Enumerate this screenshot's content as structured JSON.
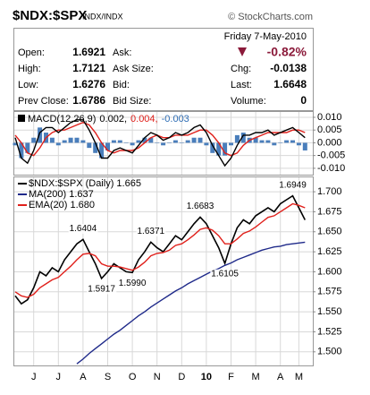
{
  "header": {
    "title": "$NDX:$SPX",
    "exchange": "INDX/INDX",
    "copyright": "© StockCharts.com"
  },
  "quote": {
    "date": "Friday  7-May-2010",
    "change": "-0.82%",
    "left": [
      [
        "Open:",
        "1.6921"
      ],
      [
        "High:",
        "1.7121"
      ],
      [
        "Low:",
        "1.6276"
      ],
      [
        "Prev Close:",
        "1.6786"
      ]
    ],
    "middle": [
      "Ask:",
      "Ask Size:",
      "Bid:",
      "Bid Size:"
    ],
    "right": [
      [
        "Chg:",
        "-0.0138"
      ],
      [
        "Last:",
        "1.6648"
      ],
      [
        "Volume:",
        "0"
      ]
    ]
  },
  "chart_data": [
    {
      "type": "line",
      "legend": [
        {
          "text": "MACD(12,26,9)",
          "color": "#000000"
        },
        {
          "text": "0.002,",
          "color": "#000000"
        },
        {
          "text": "0.004,",
          "color": "#e0201b"
        },
        {
          "text": "-0.003",
          "color": "#2f6eb5"
        }
      ],
      "ylim": [
        -0.0125,
        0.0121
      ],
      "yticks": [
        {
          "value": 0.01,
          "label": "0.010"
        },
        {
          "value": 0.005,
          "label": "0.005"
        },
        {
          "value": 0,
          "label": "0.000"
        },
        {
          "value": -0.005,
          "label": "-0.005"
        },
        {
          "value": -0.01,
          "label": "-0.010"
        }
      ],
      "grid": true,
      "series": [
        {
          "type": "bar",
          "color": "#4a7ebb",
          "values": [
            -0.001,
            -0.006,
            -0.004,
            0.002,
            0.006,
            0.004,
            0.002,
            -0.001,
            0.001,
            0.002,
            0.002,
            0.001,
            -0.002,
            -0.004,
            -0.006,
            -0.003,
            0.001,
            0.001,
            0.0,
            -0.001,
            0.001,
            0.002,
            0.002,
            0.0,
            -0.001,
            0.0,
            0.001,
            0.0,
            0.001,
            0.002,
            0.002,
            -0.001,
            -0.004,
            -0.005,
            -0.005,
            -0.001,
            0.003,
            0.004,
            0.002,
            0.002,
            0.001,
            0.001,
            -0.001,
            0.0,
            0.001,
            0.001,
            -0.001,
            -0.003
          ]
        },
        {
          "type": "line",
          "color": "#e0201b",
          "values": [
            0.003,
            0.0,
            -0.004,
            -0.005,
            -0.002,
            0.002,
            0.004,
            0.005,
            0.005,
            0.006,
            0.007,
            0.008,
            0.007,
            0.004,
            0.0,
            -0.003,
            -0.004,
            -0.003,
            -0.003,
            -0.003,
            -0.002,
            0.0,
            0.002,
            0.003,
            0.002,
            0.002,
            0.003,
            0.003,
            0.003,
            0.004,
            0.005,
            0.005,
            0.003,
            0.0,
            -0.004,
            -0.005,
            -0.004,
            -0.001,
            0.001,
            0.002,
            0.003,
            0.004,
            0.004,
            0.004,
            0.004,
            0.005,
            0.005,
            0.004
          ]
        },
        {
          "type": "line",
          "color": "#000000",
          "values": [
            0.002,
            -0.006,
            -0.008,
            -0.003,
            0.004,
            0.006,
            0.006,
            0.004,
            0.006,
            0.008,
            0.009,
            0.009,
            0.005,
            0.0,
            -0.006,
            -0.006,
            -0.003,
            -0.002,
            -0.003,
            -0.004,
            -0.001,
            0.002,
            0.004,
            0.003,
            0.001,
            0.002,
            0.004,
            0.003,
            0.004,
            0.006,
            0.007,
            0.004,
            -0.001,
            -0.005,
            -0.009,
            -0.006,
            -0.001,
            0.003,
            0.003,
            0.004,
            0.004,
            0.005,
            0.003,
            0.004,
            0.005,
            0.006,
            0.004,
            0.002
          ]
        }
      ]
    },
    {
      "type": "line",
      "categories": [
        null,
        null,
        null,
        "J",
        null,
        null,
        null,
        "J",
        null,
        null,
        null,
        "A",
        null,
        null,
        null,
        "S",
        null,
        null,
        null,
        "O",
        null,
        null,
        null,
        "N",
        null,
        null,
        null,
        "D",
        null,
        null,
        null,
        "10",
        null,
        null,
        null,
        "F",
        null,
        null,
        null,
        "M",
        null,
        null,
        null,
        "A",
        null,
        null,
        "M",
        null
      ],
      "ylim": [
        1.483,
        1.718
      ],
      "yticks": [
        {
          "value": 1.7,
          "label": "1.700"
        },
        {
          "value": 1.675,
          "label": "1.675"
        },
        {
          "value": 1.65,
          "label": "1.650"
        },
        {
          "value": 1.625,
          "label": "1.625"
        },
        {
          "value": 1.6,
          "label": "1.600"
        },
        {
          "value": 1.575,
          "label": "1.575"
        },
        {
          "value": 1.55,
          "label": "1.550"
        },
        {
          "value": 1.525,
          "label": "1.525"
        },
        {
          "value": 1.5,
          "label": "1.500"
        }
      ],
      "grid": true,
      "series": [
        {
          "name": "$NDX:$SPX (Daily) 1.665",
          "color": "#000000",
          "values": [
            1.57,
            1.56,
            1.565,
            1.58,
            1.6,
            1.595,
            1.605,
            1.6,
            1.615,
            1.625,
            1.635,
            1.6404,
            1.625,
            1.61,
            1.5917,
            1.6,
            1.61,
            1.605,
            1.6,
            1.599,
            1.615,
            1.625,
            1.6371,
            1.63,
            1.625,
            1.635,
            1.645,
            1.64,
            1.65,
            1.66,
            1.6683,
            1.66,
            1.645,
            1.63,
            1.6105,
            1.635,
            1.655,
            1.665,
            1.66,
            1.67,
            1.675,
            1.68,
            1.675,
            1.685,
            1.69,
            1.6949,
            1.68,
            1.6648
          ]
        },
        {
          "name": "MA(200) 1.637",
          "color": "#1f2a8a",
          "values": [
            null,
            null,
            null,
            null,
            null,
            null,
            null,
            null,
            null,
            null,
            1.485,
            1.491,
            1.498,
            1.504,
            1.51,
            1.516,
            1.522,
            1.527,
            1.533,
            1.539,
            1.545,
            1.55,
            1.556,
            1.561,
            1.566,
            1.571,
            1.576,
            1.58,
            1.585,
            1.589,
            1.593,
            1.597,
            1.601,
            1.604,
            1.608,
            1.611,
            1.615,
            1.618,
            1.621,
            1.624,
            1.627,
            1.629,
            1.631,
            1.632,
            1.634,
            1.635,
            1.636,
            1.637
          ]
        },
        {
          "name": "EMA(20) 1.680",
          "color": "#e0201b",
          "values": [
            1.575,
            1.57,
            1.568,
            1.572,
            1.58,
            1.585,
            1.59,
            1.593,
            1.6,
            1.607,
            1.615,
            1.622,
            1.623,
            1.62,
            1.61,
            1.607,
            1.607,
            1.606,
            1.604,
            1.602,
            1.606,
            1.612,
            1.62,
            1.623,
            1.624,
            1.627,
            1.633,
            1.635,
            1.64,
            1.646,
            1.653,
            1.655,
            1.652,
            1.645,
            1.635,
            1.635,
            1.641,
            1.648,
            1.651,
            1.656,
            1.662,
            1.668,
            1.67,
            1.675,
            1.68,
            1.685,
            1.683,
            1.68
          ]
        }
      ],
      "annotations": [
        {
          "label": "1.6404",
          "value": 1.6404
        },
        {
          "label": "1.5917",
          "value": 1.5917
        },
        {
          "label": "1.5990",
          "value": 1.599
        },
        {
          "label": "1.6371",
          "value": 1.6371
        },
        {
          "label": "1.6683",
          "value": 1.6683
        },
        {
          "label": "1.6105",
          "value": 1.6105
        },
        {
          "label": "1.6949",
          "value": 1.6949
        }
      ]
    }
  ]
}
